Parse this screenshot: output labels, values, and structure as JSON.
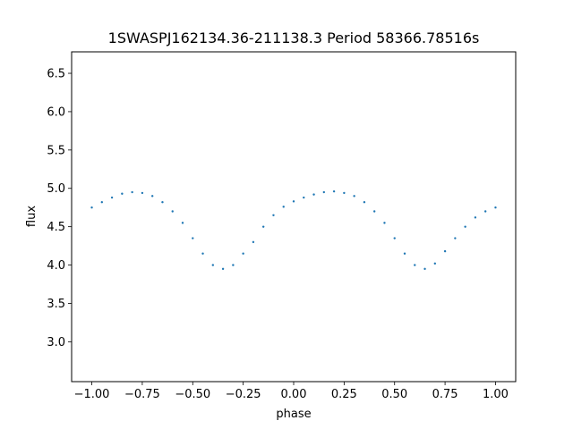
{
  "chart_data": {
    "type": "scatter",
    "title": "1SWASPJ162134.36-211138.3 Period 58366.78516s",
    "xlabel": "phase",
    "ylabel": "flux",
    "xlim": [
      -1.1,
      1.1
    ],
    "ylim": [
      2.48,
      6.78
    ],
    "x_ticks": [
      -1.0,
      -0.75,
      -0.5,
      -0.25,
      0.0,
      0.25,
      0.5,
      0.75,
      1.0
    ],
    "x_tick_labels": [
      "−1.00",
      "−0.75",
      "−0.50",
      "−0.25",
      "0.00",
      "0.25",
      "0.50",
      "0.75",
      "1.00"
    ],
    "y_ticks": [
      3.0,
      3.5,
      4.0,
      4.5,
      5.0,
      5.5,
      6.0,
      6.5
    ],
    "y_tick_labels": [
      "3.0",
      "3.5",
      "4.0",
      "4.5",
      "5.0",
      "5.5",
      "6.0",
      "6.5"
    ],
    "grid": false,
    "point_color": "#1f77b4",
    "series": [
      {
        "x": [
          -1.0,
          -0.95,
          -0.9,
          -0.85,
          -0.8,
          -0.75,
          -0.7,
          -0.65,
          -0.6,
          -0.55,
          -0.5,
          -0.45,
          -0.4,
          -0.35,
          -0.3,
          -0.25,
          -0.2,
          -0.15,
          -0.1,
          -0.05,
          0.0,
          0.05,
          0.1,
          0.15,
          0.2,
          0.25,
          0.3,
          0.35,
          0.4,
          0.45,
          0.5,
          0.55,
          0.6,
          0.65,
          0.7,
          0.75,
          0.8,
          0.85,
          0.9,
          0.95,
          1.0
        ],
        "y": [
          4.75,
          4.82,
          4.88,
          4.93,
          4.95,
          4.94,
          4.9,
          4.82,
          4.7,
          4.55,
          4.35,
          4.15,
          4.0,
          3.95,
          4.0,
          4.15,
          4.3,
          4.5,
          4.65,
          4.76,
          4.83,
          4.88,
          4.92,
          4.95,
          4.96,
          4.94,
          4.9,
          4.82,
          4.7,
          4.55,
          4.35,
          4.15,
          4.0,
          3.95,
          4.02,
          4.18,
          4.35,
          4.5,
          4.62,
          4.7,
          4.75
        ]
      }
    ]
  }
}
